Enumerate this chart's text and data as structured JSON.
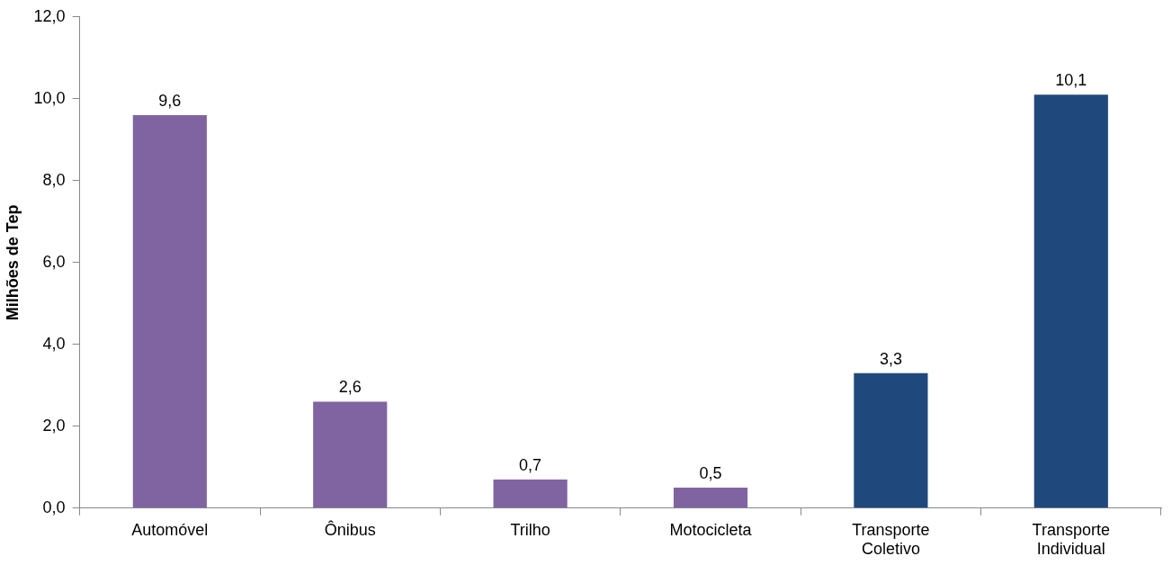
{
  "chart_data": {
    "type": "bar",
    "ylabel": "Milhões de Tep",
    "categories": [
      "Automóvel",
      "Ônibus",
      "Trilho",
      "Motocicleta",
      "Transporte Coletivo",
      "Transporte Individual"
    ],
    "values": [
      9.6,
      2.6,
      0.7,
      0.5,
      3.3,
      10.1
    ],
    "colors": [
      "#8064a2",
      "#8064a2",
      "#8064a2",
      "#8064a2",
      "#1f497d",
      "#1f497d"
    ],
    "value_labels": [
      "9,6",
      "2,6",
      "0,7",
      "0,5",
      "3,3",
      "10,1"
    ],
    "ylim": [
      0,
      12
    ],
    "yticks": [
      {
        "value": 0,
        "label": "0,0"
      },
      {
        "value": 2,
        "label": "2,0"
      },
      {
        "value": 4,
        "label": "4,0"
      },
      {
        "value": 6,
        "label": "6,0"
      },
      {
        "value": 8,
        "label": "8,0"
      },
      {
        "value": 10,
        "label": "10,0"
      },
      {
        "value": 12,
        "label": "12,0"
      }
    ],
    "grid": false,
    "legend": false
  }
}
